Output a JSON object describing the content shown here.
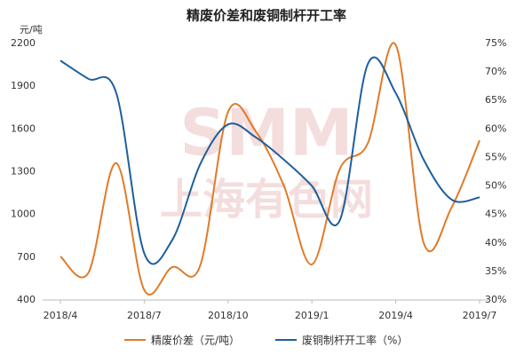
{
  "chart_data": {
    "type": "line",
    "title": "精废价差和废铜制杆开工率",
    "watermark": [
      "SMM",
      "上海有色网"
    ],
    "y_label": "元/吨",
    "categories": [
      "2018/4",
      null,
      null,
      "2018/7",
      null,
      null,
      "2018/10",
      null,
      null,
      "2019/1",
      null,
      null,
      "2019/4",
      null,
      null,
      "2019/7"
    ],
    "series": [
      {
        "name": "精废价差（元/吨）",
        "color": "#e07b29",
        "values": [
          705,
          590,
          1360,
          470,
          630,
          640,
          1720,
          1580,
          1200,
          650,
          1320,
          1500,
          2190,
          800,
          1050,
          1520
        ]
      },
      {
        "name": "废铜制杆开工率（%）",
        "color": "#1f5f9c",
        "axis": "y2",
        "values": [
          72,
          68.8,
          66.3,
          38.2,
          40.5,
          53.8,
          60.8,
          58.5,
          54.6,
          50,
          44,
          71.4,
          66.3,
          54.6,
          47.6,
          48
        ]
      }
    ],
    "ylim": [
      400,
      2200
    ],
    "yticks": [
      400,
      700,
      1000,
      1300,
      1600,
      1900,
      2200
    ],
    "y2lim": [
      30,
      75
    ],
    "y2ticks": [
      {
        "value": 30,
        "label": "30%"
      },
      {
        "value": 35,
        "label": "35%"
      },
      {
        "value": 40,
        "label": "40%"
      },
      {
        "value": 45,
        "label": "45%"
      },
      {
        "value": 50,
        "label": "50%"
      },
      {
        "value": 55,
        "label": "55%"
      },
      {
        "value": 60,
        "label": "60%"
      },
      {
        "value": 65,
        "label": "65%"
      },
      {
        "value": 70,
        "label": "70%"
      },
      {
        "value": 75,
        "label": "75%"
      }
    ],
    "legend": "bottom"
  }
}
